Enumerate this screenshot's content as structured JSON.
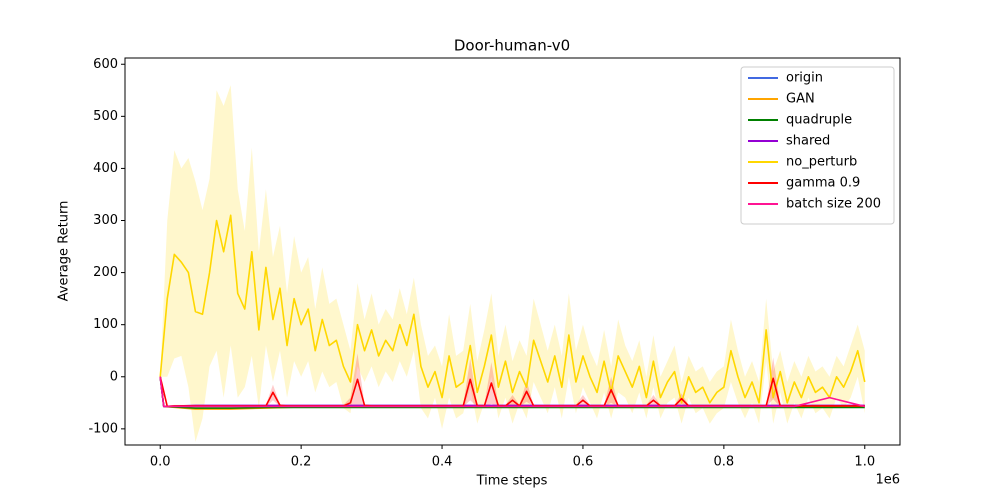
{
  "chart_data": {
    "type": "line",
    "title": "Door-human-v0",
    "x_label": "Time steps",
    "y_label": "Average Return",
    "x_offset_label": "1e6",
    "xlim": [
      -50000,
      1050000
    ],
    "ylim": [
      -131,
      612
    ],
    "xticks": [
      {
        "value": 0,
        "label": "0.0"
      },
      {
        "value": 200000,
        "label": "0.2"
      },
      {
        "value": 400000,
        "label": "0.4"
      },
      {
        "value": 600000,
        "label": "0.6"
      },
      {
        "value": 800000,
        "label": "0.8"
      },
      {
        "value": 1000000,
        "label": "1.0"
      }
    ],
    "yticks": [
      -100,
      0,
      100,
      200,
      300,
      400,
      500,
      600
    ],
    "legend_position": "upper right",
    "x": [
      0,
      10000,
      20000,
      30000,
      40000,
      50000,
      60000,
      70000,
      80000,
      90000,
      100000,
      110000,
      120000,
      130000,
      140000,
      150000,
      160000,
      170000,
      180000,
      190000,
      200000,
      210000,
      220000,
      230000,
      240000,
      250000,
      260000,
      270000,
      280000,
      290000,
      300000,
      310000,
      320000,
      330000,
      340000,
      350000,
      360000,
      370000,
      380000,
      390000,
      400000,
      410000,
      420000,
      430000,
      440000,
      450000,
      460000,
      470000,
      480000,
      490000,
      500000,
      510000,
      520000,
      530000,
      540000,
      550000,
      560000,
      570000,
      580000,
      590000,
      600000,
      610000,
      620000,
      630000,
      640000,
      650000,
      660000,
      670000,
      680000,
      690000,
      700000,
      710000,
      720000,
      730000,
      740000,
      750000,
      760000,
      770000,
      780000,
      790000,
      800000,
      810000,
      820000,
      830000,
      840000,
      850000,
      860000,
      870000,
      880000,
      890000,
      900000,
      910000,
      920000,
      930000,
      940000,
      950000,
      960000,
      970000,
      980000,
      990000,
      1000000
    ],
    "series": [
      {
        "name": "origin",
        "color": "#4169e1",
        "x": [
          0,
          5000,
          50000,
          100000,
          150000,
          200000,
          250000,
          300000,
          350000,
          400000,
          450000,
          500000,
          550000,
          600000,
          650000,
          700000,
          750000,
          800000,
          850000,
          900000,
          950000,
          1000000
        ],
        "values": [
          0,
          -57,
          -56,
          -56,
          -56,
          -56,
          -56,
          -56,
          -56,
          -56,
          -56,
          -56,
          -56,
          -56,
          -56,
          -56,
          -56,
          -56,
          -56,
          -56,
          -56,
          -56
        ]
      },
      {
        "name": "GAN",
        "color": "#ffa500",
        "x": [
          0,
          5000,
          50000,
          100000,
          150000,
          200000,
          250000,
          300000,
          350000,
          400000,
          450000,
          500000,
          550000,
          600000,
          650000,
          700000,
          750000,
          800000,
          850000,
          900000,
          950000,
          1000000
        ],
        "values": [
          0,
          -57,
          -62,
          -62,
          -60,
          -58,
          -58,
          -57,
          -57,
          -57,
          -57,
          -57,
          -57,
          -57,
          -57,
          -57,
          -57,
          -57,
          -57,
          -57,
          -57,
          -57
        ]
      },
      {
        "name": "quadruple",
        "color": "#008000",
        "x": [
          0,
          5000,
          50000,
          100000,
          150000,
          200000,
          250000,
          300000,
          350000,
          400000,
          450000,
          500000,
          550000,
          600000,
          650000,
          700000,
          750000,
          800000,
          850000,
          900000,
          950000,
          1000000
        ],
        "values": [
          0,
          -57,
          -60,
          -60,
          -59,
          -59,
          -59,
          -59,
          -59,
          -59,
          -59,
          -59,
          -59,
          -59,
          -59,
          -59,
          -59,
          -59,
          -59,
          -59,
          -59,
          -59
        ]
      },
      {
        "name": "shared",
        "color": "#9400d3",
        "x": [
          0,
          5000,
          50000,
          100000,
          150000,
          200000,
          250000,
          300000,
          350000,
          400000,
          450000,
          500000,
          550000,
          600000,
          650000,
          700000,
          750000,
          800000,
          850000,
          900000,
          950000,
          1000000
        ],
        "values": [
          0,
          -57,
          -55,
          -55,
          -55,
          -55,
          -55,
          -55,
          -55,
          -55,
          -55,
          -55,
          -55,
          -55,
          -55,
          -55,
          -55,
          -55,
          -55,
          -55,
          -55,
          -55
        ]
      },
      {
        "name": "no_perturb",
        "color": "#ffd700",
        "values": [
          0,
          150,
          235,
          220,
          200,
          125,
          120,
          200,
          300,
          240,
          310,
          160,
          130,
          240,
          90,
          210,
          110,
          170,
          60,
          150,
          100,
          130,
          50,
          110,
          60,
          70,
          20,
          -10,
          100,
          50,
          90,
          40,
          70,
          50,
          100,
          60,
          120,
          20,
          -20,
          10,
          -40,
          40,
          -20,
          -10,
          60,
          -30,
          20,
          80,
          -20,
          30,
          -30,
          10,
          -20,
          70,
          30,
          -10,
          40,
          -20,
          80,
          -10,
          40,
          0,
          -30,
          30,
          -30,
          40,
          10,
          -20,
          20,
          -40,
          30,
          -40,
          -10,
          10,
          -50,
          0,
          -30,
          -20,
          -50,
          -30,
          -20,
          50,
          0,
          -40,
          -10,
          -50,
          90,
          -40,
          10,
          -50,
          -10,
          -40,
          0,
          -30,
          -20,
          -40,
          0,
          -20,
          10,
          50,
          -10
        ],
        "std": [
          0,
          150,
          200,
          180,
          220,
          250,
          200,
          180,
          250,
          280,
          250,
          200,
          150,
          200,
          150,
          150,
          120,
          120,
          100,
          120,
          100,
          100,
          80,
          100,
          80,
          80,
          80,
          60,
          80,
          60,
          70,
          60,
          60,
          60,
          70,
          60,
          70,
          80,
          60,
          50,
          60,
          80,
          60,
          60,
          80,
          60,
          70,
          80,
          60,
          70,
          60,
          60,
          60,
          80,
          70,
          60,
          60,
          60,
          80,
          60,
          60,
          50,
          50,
          60,
          50,
          70,
          50,
          50,
          50,
          40,
          50,
          40,
          40,
          50,
          40,
          40,
          40,
          40,
          40,
          40,
          40,
          60,
          50,
          40,
          40,
          40,
          60,
          50,
          40,
          40,
          40,
          40,
          40,
          40,
          40,
          40,
          40,
          40,
          50,
          50,
          60
        ]
      },
      {
        "name": "gamma 0.9",
        "color": "#ff0000",
        "values": [
          0,
          -57,
          -56,
          -56,
          -56,
          -56,
          -56,
          -56,
          -56,
          -56,
          -56,
          -56,
          -56,
          -56,
          -56,
          -56,
          -30,
          -55,
          -56,
          -56,
          -56,
          -56,
          -56,
          -56,
          -56,
          -56,
          -56,
          -50,
          -5,
          -55,
          -56,
          -56,
          -56,
          -56,
          -56,
          -56,
          -56,
          -56,
          -56,
          -56,
          -56,
          -56,
          -56,
          -56,
          -5,
          -56,
          -56,
          -12,
          -56,
          -56,
          -45,
          -56,
          -28,
          -56,
          -56,
          -56,
          -56,
          -56,
          -56,
          -56,
          -45,
          -56,
          -56,
          -56,
          -25,
          -56,
          -56,
          -56,
          -56,
          -56,
          -45,
          -56,
          -56,
          -56,
          -42,
          -56,
          -56,
          -56,
          -56,
          -56,
          -56,
          -56,
          -56,
          -56,
          -56,
          -56,
          -56,
          -3,
          -56,
          -56,
          -56,
          -56,
          -56,
          -56,
          -56,
          -56,
          -56,
          -56,
          -56,
          -56,
          -56
        ],
        "std": [
          0,
          2,
          2,
          2,
          2,
          2,
          2,
          2,
          2,
          2,
          2,
          2,
          2,
          2,
          2,
          2,
          15,
          2,
          2,
          2,
          2,
          2,
          2,
          2,
          2,
          2,
          2,
          10,
          50,
          2,
          2,
          2,
          2,
          2,
          2,
          2,
          2,
          2,
          2,
          2,
          2,
          2,
          2,
          2,
          40,
          2,
          2,
          40,
          2,
          2,
          10,
          2,
          20,
          2,
          2,
          2,
          2,
          2,
          2,
          2,
          10,
          2,
          2,
          2,
          25,
          2,
          2,
          2,
          2,
          2,
          10,
          2,
          2,
          2,
          10,
          2,
          2,
          2,
          2,
          2,
          2,
          2,
          2,
          2,
          2,
          2,
          2,
          40,
          2,
          2,
          2,
          2,
          2,
          2,
          2,
          2,
          2,
          2,
          2,
          2,
          2
        ]
      },
      {
        "name": "batch size 200",
        "color": "#ff1493",
        "x": [
          0,
          5000,
          50000,
          100000,
          150000,
          200000,
          250000,
          300000,
          350000,
          400000,
          450000,
          500000,
          550000,
          600000,
          650000,
          700000,
          750000,
          800000,
          850000,
          900000,
          950000,
          1000000
        ],
        "values": [
          0,
          -57,
          -57,
          -57,
          -57,
          -57,
          -57,
          -57,
          -57,
          -57,
          -57,
          -57,
          -57,
          -57,
          -57,
          -57,
          -57,
          -57,
          -57,
          -57,
          -40,
          -57
        ]
      }
    ]
  }
}
